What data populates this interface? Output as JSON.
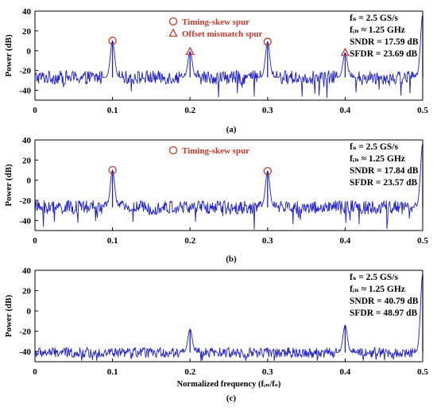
{
  "colors": {
    "line": "#1f1fc8",
    "marker": "#c0392b",
    "axis": "#000000"
  },
  "chart_data": [
    {
      "type": "line",
      "panel_label": "(a)",
      "xlabel": "",
      "ylabel": "Power (dB)",
      "xlim": [
        0,
        0.5
      ],
      "ylim": [
        -50,
        40
      ],
      "xticks": [
        "0",
        "0.1",
        "0.2",
        "0.3",
        "0.4",
        "0.5"
      ],
      "yticks": [
        "40",
        "20",
        "0",
        "-20",
        "-40"
      ],
      "noise_floor_db": -27,
      "noise_spread_db": 7,
      "peaks": [
        {
          "x": 0.1,
          "y": 10
        },
        {
          "x": 0.2,
          "y": -1
        },
        {
          "x": 0.3,
          "y": 9
        },
        {
          "x": 0.4,
          "y": -2
        },
        {
          "x": 0.5,
          "y": 36
        }
      ],
      "markers": [
        {
          "shape": "circle",
          "x": 0.1,
          "y": 10
        },
        {
          "shape": "triangle",
          "x": 0.2,
          "y": -1
        },
        {
          "shape": "circle",
          "x": 0.3,
          "y": 9
        },
        {
          "shape": "triangle",
          "x": 0.4,
          "y": -2
        }
      ],
      "legend": [
        {
          "shape": "circle",
          "label": "Timing-skew spur"
        },
        {
          "shape": "triangle",
          "label": "Offset mismatch spur"
        }
      ],
      "annotations": {
        "fs": "fₛ = 2.5 GS/s",
        "fin": "fᵢₙ ≈ 1.25 GHz",
        "sndr": "SNDR = 17.59 dB",
        "sfdr": "SFDR = 23.69 dB"
      }
    },
    {
      "type": "line",
      "panel_label": "(b)",
      "xlabel": "",
      "ylabel": "Power (dB)",
      "xlim": [
        0,
        0.5
      ],
      "ylim": [
        -50,
        40
      ],
      "xticks": [
        "0",
        "0.1",
        "0.2",
        "0.3",
        "0.4",
        "0.5"
      ],
      "yticks": [
        "40",
        "20",
        "0",
        "-20",
        "-40"
      ],
      "noise_floor_db": -27,
      "noise_spread_db": 7,
      "peaks": [
        {
          "x": 0.1,
          "y": 10
        },
        {
          "x": 0.3,
          "y": 9
        },
        {
          "x": 0.5,
          "y": 36
        }
      ],
      "markers": [
        {
          "shape": "circle",
          "x": 0.1,
          "y": 10
        },
        {
          "shape": "circle",
          "x": 0.3,
          "y": 9
        }
      ],
      "legend": [
        {
          "shape": "circle",
          "label": "Timing-skew spur"
        }
      ],
      "annotations": {
        "fs": "fₛ = 2.5 GS/s",
        "fin": "fᵢₙ ≈ 1.25 GHz",
        "sndr": "SNDR = 17.84 dB",
        "sfdr": "SFDR = 23.57 dB"
      }
    },
    {
      "type": "line",
      "panel_label": "(c)",
      "xlabel": "Normalized frequency (fᵢₙ/fₛ)",
      "ylabel": "Power (dB)",
      "xlim": [
        0,
        0.5
      ],
      "ylim": [
        -50,
        40
      ],
      "xticks": [
        "0",
        "0.1",
        "0.2",
        "0.3",
        "0.4",
        "0.5"
      ],
      "yticks": [
        "40",
        "20",
        "0",
        "-20",
        "-40"
      ],
      "noise_floor_db": -41,
      "noise_spread_db": 5,
      "peaks": [
        {
          "x": 0.2,
          "y": -18
        },
        {
          "x": 0.4,
          "y": -14
        },
        {
          "x": 0.5,
          "y": 36
        }
      ],
      "markers": [],
      "legend": [],
      "annotations": {
        "fs": "fₛ = 2.5 GS/s",
        "fin": "fᵢₙ ≈ 1.25 GHz",
        "sndr": "SNDR = 40.79 dB",
        "sfdr": "SFDR = 48.97 dB"
      }
    }
  ]
}
